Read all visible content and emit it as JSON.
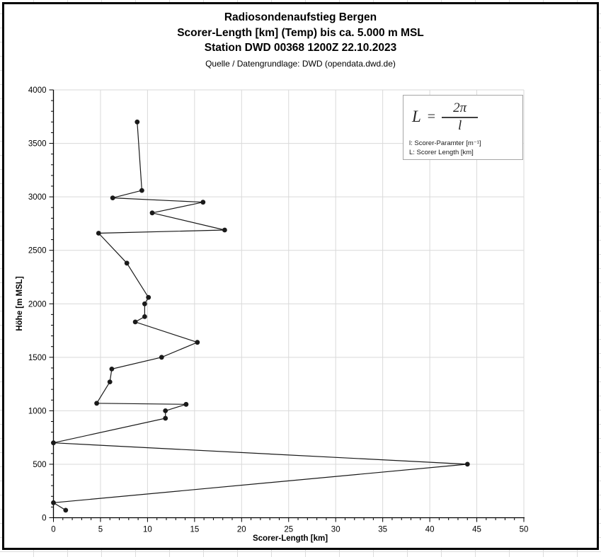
{
  "titles": {
    "line1": "Radiosondenaufstieg Bergen",
    "line2": "Scorer-Length [km] (Temp) bis ca. 5.000 m MSL",
    "line3": "Station DWD 00368 1200Z 22.10.2023",
    "line4": "Quelle / Datengrundlage: DWD (opendata.dwd.de)"
  },
  "axes": {
    "x": {
      "title": "Scorer-Length [km]",
      "min": 0,
      "max": 50,
      "major": 5,
      "minor": 1,
      "tick_labels": [
        "0",
        "5",
        "10",
        "15",
        "20",
        "25",
        "30",
        "35",
        "40",
        "45",
        "50"
      ]
    },
    "y": {
      "title": "Höhe [m MSL]",
      "min": 0,
      "max": 4000,
      "major": 500,
      "minor": 100,
      "tick_labels": [
        "0",
        "500",
        "1000",
        "1500",
        "2000",
        "2500",
        "3000",
        "3500",
        "4000"
      ]
    }
  },
  "formula_box": {
    "lhs": "L",
    "equals": "=",
    "numerator": "2π",
    "denominator": "l",
    "legend_line1": "l: Scorer-Paramter [m⁻¹]",
    "legend_line2": "L: Scorer Length [km]"
  },
  "colors": {
    "grid": "#d9d9d9",
    "axis": "#000000",
    "series": "#1a1a1a",
    "box_border": "#a6a6a6"
  },
  "chart_data": {
    "type": "line",
    "title": "Radiosondenaufstieg Bergen — Scorer-Length [km] (Temp) bis ca. 5.000 m MSL — Station DWD 00368 1200Z 22.10.2023",
    "subtitle": "Quelle / Datengrundlage: DWD (opendata.dwd.de)",
    "xlabel": "Scorer-Length [km]",
    "ylabel": "Höhe [m MSL]",
    "xlim": [
      0,
      50
    ],
    "ylim": [
      0,
      4000
    ],
    "grid": true,
    "legend": false,
    "marker": "circle",
    "series": [
      {
        "name": "Scorer-Length (Temp)",
        "points_format": "[scorer_length_km, hoehe_m_msl]",
        "points": [
          [
            1.3,
            70
          ],
          [
            0,
            140
          ],
          [
            44,
            500
          ],
          [
            0,
            700
          ],
          [
            11.9,
            930
          ],
          [
            11.9,
            1000
          ],
          [
            14.1,
            1060
          ],
          [
            4.6,
            1070
          ],
          [
            6.0,
            1270
          ],
          [
            6.2,
            1390
          ],
          [
            11.5,
            1500
          ],
          [
            15.3,
            1640
          ],
          [
            8.7,
            1830
          ],
          [
            9.7,
            1880
          ],
          [
            9.7,
            2000
          ],
          [
            10.1,
            2060
          ],
          [
            7.8,
            2380
          ],
          [
            4.8,
            2660
          ],
          [
            18.2,
            2690
          ],
          [
            10.5,
            2850
          ],
          [
            15.9,
            2950
          ],
          [
            6.3,
            2990
          ],
          [
            9.4,
            3060
          ],
          [
            8.9,
            3700
          ]
        ]
      }
    ]
  }
}
